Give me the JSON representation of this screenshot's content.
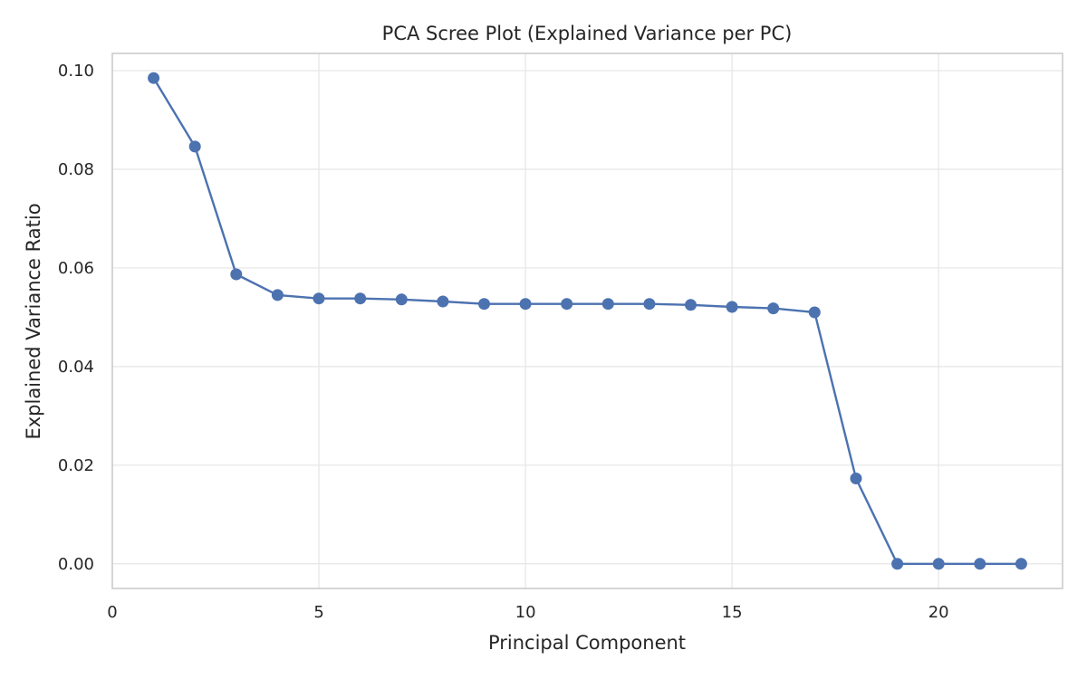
{
  "chart_data": {
    "type": "line",
    "title": "PCA Scree Plot (Explained Variance per PC)",
    "xlabel": "Principal Component",
    "ylabel": "Explained Variance Ratio",
    "xlim": [
      0,
      23
    ],
    "ylim": [
      -0.005,
      0.1035
    ],
    "xticks": [
      0,
      5,
      10,
      15,
      20
    ],
    "xtick_labels": [
      "0",
      "5",
      "10",
      "15",
      "20"
    ],
    "yticks": [
      0.0,
      0.02,
      0.04,
      0.06,
      0.08,
      0.1
    ],
    "ytick_labels": [
      "0.00",
      "0.02",
      "0.04",
      "0.06",
      "0.08",
      "0.10"
    ],
    "grid": true,
    "legend": "none",
    "color": "#4c72b0",
    "x": [
      1,
      2,
      3,
      4,
      5,
      6,
      7,
      8,
      9,
      10,
      11,
      12,
      13,
      14,
      15,
      16,
      17,
      18,
      19,
      20,
      21,
      22
    ],
    "values": [
      0.0985,
      0.0846,
      0.0587,
      0.0545,
      0.0538,
      0.0538,
      0.0536,
      0.0532,
      0.0527,
      0.0527,
      0.0527,
      0.0527,
      0.0527,
      0.0525,
      0.0521,
      0.0518,
      0.051,
      0.0173,
      0.0,
      0.0,
      0.0,
      0.0
    ]
  }
}
